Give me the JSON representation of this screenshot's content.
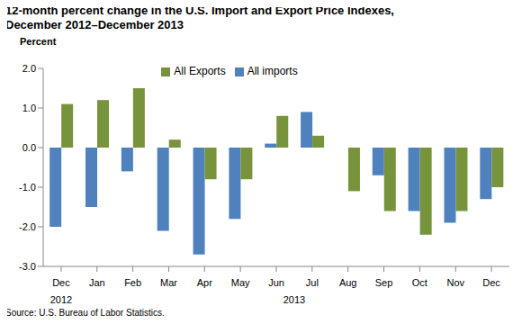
{
  "chart_data": {
    "type": "bar",
    "title": "12-month percent change in the U.S. Import and Export Price Indexes, December 2012–December 2013",
    "y_label": "Percent",
    "source": "Source: U.S. Bureau of Labor Statistics.",
    "categories": [
      "Dec",
      "Jan",
      "Feb",
      "Mar",
      "Apr",
      "May",
      "Jun",
      "Jul",
      "Aug",
      "Sep",
      "Oct",
      "Nov",
      "Dec"
    ],
    "x_groups": [
      {
        "label": "2012",
        "count": 1
      },
      {
        "label": "2013",
        "count": 12
      }
    ],
    "series": [
      {
        "name": "All imports",
        "color": "#4f81bd",
        "values": [
          -2.0,
          -1.5,
          -0.6,
          -2.1,
          -2.7,
          -1.8,
          0.1,
          0.9,
          0.0,
          -0.7,
          -1.6,
          -1.9,
          -1.3
        ]
      },
      {
        "name": "All Exports",
        "color": "#77933c",
        "values": [
          1.1,
          1.2,
          1.5,
          0.2,
          -0.8,
          -0.8,
          0.8,
          0.3,
          -1.1,
          -1.6,
          -2.2,
          -1.6,
          -1.0
        ]
      }
    ],
    "ylim": [
      -3,
      2
    ],
    "yticks": [
      {
        "value": -3,
        "label": "-3.0"
      },
      {
        "value": -2,
        "label": "-2.0"
      },
      {
        "value": -1,
        "label": "-1.0"
      },
      {
        "value": 0,
        "label": "0.0"
      },
      {
        "value": 1,
        "label": "1.0"
      },
      {
        "value": 2,
        "label": "2.0"
      }
    ],
    "grid": false,
    "legend": "top"
  }
}
